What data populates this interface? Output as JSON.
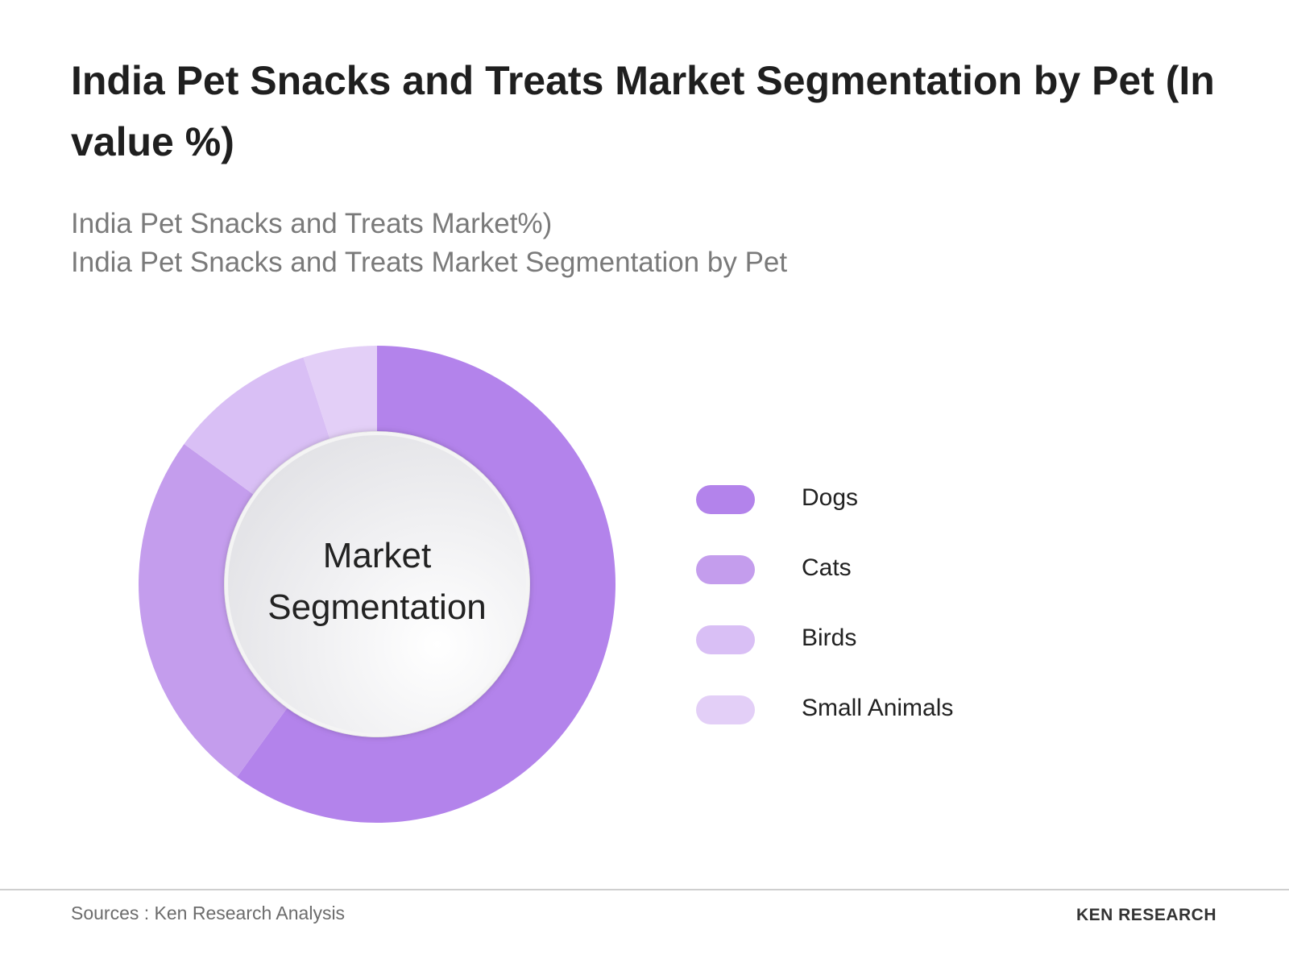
{
  "chart_data": {
    "type": "donut",
    "title": "India Pet Snacks and Treats Market Segmentation by Pet (In value %)",
    "subtitle": [
      "India Pet Snacks and Treats Market%)",
      "India Pet Snacks and Treats Market Segmentation by Pet"
    ],
    "center_label": "Market Segmentation",
    "categories": [
      "Dogs",
      "Cats",
      "Birds",
      "Small Animals"
    ],
    "values": [
      60,
      25,
      10,
      5
    ],
    "colors": [
      "#b383eb",
      "#c49ded",
      "#d9bff5",
      "#e3cff7"
    ],
    "source": "Sources : Ken Research Analysis",
    "brand": "KEN RESEARCH"
  }
}
